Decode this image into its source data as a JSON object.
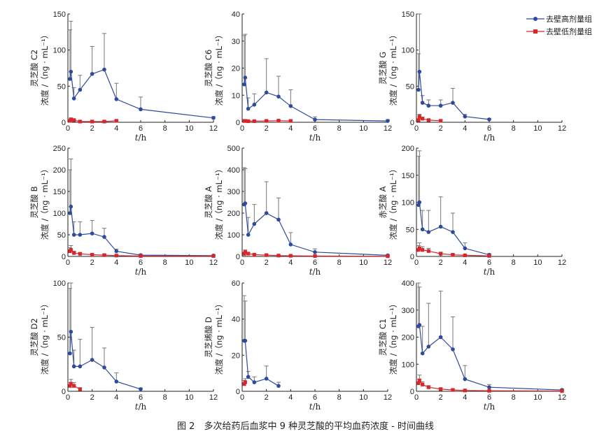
{
  "caption": "图 2　多次给药后血浆中 9 种灵芝酸的平均血药浓度 - 时间曲线",
  "colors": {
    "high": "#2e4a9e",
    "low": "#d9262b",
    "axis": "#222222",
    "error": "#777777"
  },
  "legend": [
    {
      "label": "去壁高剂量组",
      "color": "#2e4a9e",
      "marker": "circle"
    },
    {
      "label": "去壁低剂量组",
      "color": "#d9262b",
      "marker": "square"
    }
  ],
  "chart_data": [
    {
      "type": "line",
      "compound": "灵芝酸 C2",
      "ylabel_line1": "灵芝酸 C2",
      "ylabel_line2": "浓度 /（ng · mL⁻¹）",
      "xlabel": "t/h",
      "xlim": [
        0,
        12
      ],
      "xticks": [
        0,
        2,
        4,
        6,
        8,
        10,
        12
      ],
      "ylim": [
        0,
        150
      ],
      "yticks": [
        0,
        50,
        100,
        150
      ],
      "series": [
        {
          "name": "去壁高剂量组",
          "x": [
            0.17,
            0.25,
            0.5,
            1,
            2,
            3,
            4,
            6,
            12
          ],
          "y": [
            60,
            70,
            33,
            45,
            67,
            73,
            32,
            18,
            6
          ],
          "err": [
            68,
            70,
            15,
            20,
            38,
            50,
            22,
            17,
            2
          ]
        },
        {
          "name": "去壁低剂量组",
          "x": [
            0.17,
            0.25,
            0.5,
            1,
            2,
            3,
            4
          ],
          "y": [
            2,
            4,
            3,
            1,
            1,
            1,
            2
          ],
          "err": [
            1,
            2,
            1,
            1,
            1,
            1,
            1
          ]
        }
      ]
    },
    {
      "type": "line",
      "compound": "灵芝酸 C6",
      "ylabel_line1": "灵芝酸 C6",
      "ylabel_line2": "浓度 /（ng · mL⁻¹）",
      "xlabel": "t/h",
      "xlim": [
        0,
        12
      ],
      "xticks": [
        0,
        2,
        4,
        6,
        8,
        10,
        12
      ],
      "ylim": [
        0,
        40
      ],
      "yticks": [
        0,
        10,
        20,
        30,
        40
      ],
      "series": [
        {
          "name": "去壁高剂量组",
          "x": [
            0.17,
            0.25,
            0.5,
            1,
            2,
            3,
            4,
            6,
            12
          ],
          "y": [
            14,
            16.5,
            5,
            6.5,
            11,
            9.5,
            6,
            1,
            0.5
          ],
          "err": [
            18,
            16,
            4,
            4,
            12.5,
            7.5,
            6,
            1,
            0.5
          ]
        },
        {
          "name": "去壁低剂量组",
          "x": [
            0.17,
            0.25,
            0.5,
            1,
            2,
            3,
            4
          ],
          "y": [
            0.5,
            0.5,
            0.4,
            0.4,
            0.5,
            0.6,
            0.5
          ],
          "err": [
            0.3,
            0.3,
            0.2,
            0.2,
            0.2,
            0.2,
            0.2
          ]
        }
      ]
    },
    {
      "type": "line",
      "compound": "灵芝酸 G",
      "ylabel_line1": "灵芝酸 G",
      "ylabel_line2": "浓度 /（ng · mL⁻¹）",
      "xlabel": "t/h",
      "xlim": [
        0,
        12
      ],
      "xticks": [
        0,
        2,
        4,
        6,
        8,
        10,
        12
      ],
      "ylim": [
        0,
        150
      ],
      "yticks": [
        0,
        50,
        100,
        150
      ],
      "series": [
        {
          "name": "去壁高剂量组",
          "x": [
            0.17,
            0.25,
            0.5,
            1,
            2,
            3,
            4,
            6
          ],
          "y": [
            45,
            70,
            27,
            23,
            23,
            27,
            8,
            4
          ],
          "err": [
            50,
            80,
            10,
            8,
            8,
            20,
            3,
            1
          ]
        },
        {
          "name": "去壁低剂量组",
          "x": [
            0.17,
            0.25,
            0.5,
            1,
            2
          ],
          "y": [
            3,
            8,
            5,
            3,
            2
          ],
          "err": [
            2,
            3,
            2,
            1,
            1
          ]
        }
      ]
    },
    {
      "type": "line",
      "compound": "灵芝酸 B",
      "ylabel_line1": "灵芝酸 B",
      "ylabel_line2": "浓度 /（ng · mL⁻¹）",
      "xlabel": "t/h",
      "xlim": [
        0,
        12
      ],
      "xticks": [
        0,
        2,
        4,
        6,
        8,
        10,
        12
      ],
      "ylim": [
        0,
        250
      ],
      "yticks": [
        0,
        50,
        100,
        150,
        200,
        250
      ],
      "series": [
        {
          "name": "去壁高剂量组",
          "x": [
            0.17,
            0.25,
            0.5,
            1,
            2,
            3,
            4,
            6,
            12
          ],
          "y": [
            100,
            115,
            50,
            50,
            53,
            45,
            12,
            3,
            2
          ],
          "err": [
            100,
            110,
            30,
            30,
            30,
            20,
            5,
            2,
            1
          ]
        },
        {
          "name": "去壁低剂量组",
          "x": [
            0.17,
            0.25,
            0.5,
            1,
            2,
            3,
            4,
            6,
            12
          ],
          "y": [
            12,
            15,
            8,
            6,
            4,
            3,
            2,
            1,
            1
          ],
          "err": [
            8,
            10,
            4,
            3,
            2,
            2,
            1,
            1,
            0.5
          ]
        }
      ]
    },
    {
      "type": "line",
      "compound": "灵芝酸 A",
      "ylabel_line1": "灵芝酸 A",
      "ylabel_line2": "浓度 /（ng · mL⁻¹）",
      "xlabel": "t/h",
      "xlim": [
        0,
        12
      ],
      "xticks": [
        0,
        2,
        4,
        6,
        8,
        10,
        12
      ],
      "ylim": [
        0,
        500
      ],
      "yticks": [
        0,
        100,
        200,
        300,
        400,
        500
      ],
      "series": [
        {
          "name": "去壁高剂量组",
          "x": [
            0.17,
            0.25,
            0.5,
            1,
            2,
            3,
            4,
            6,
            12
          ],
          "y": [
            240,
            245,
            100,
            150,
            200,
            170,
            55,
            20,
            5
          ],
          "err": [
            170,
            160,
            80,
            90,
            145,
            100,
            55,
            15,
            3
          ]
        },
        {
          "name": "去壁低剂量组",
          "x": [
            0.17,
            0.25,
            0.5,
            1,
            2,
            3,
            4,
            6,
            12
          ],
          "y": [
            12,
            20,
            13,
            8,
            6,
            4,
            3,
            2,
            1
          ],
          "err": [
            8,
            10,
            6,
            4,
            3,
            2,
            2,
            1,
            0.5
          ]
        }
      ]
    },
    {
      "type": "line",
      "compound": "赤芝酸 A",
      "ylabel_line1": "赤芝酸 A",
      "ylabel_line2": "浓度 /（ng · mL⁻¹）",
      "xlabel": "t/h",
      "xlim": [
        0,
        12
      ],
      "xticks": [
        0,
        2,
        4,
        6,
        8,
        10,
        12
      ],
      "ylim": [
        0,
        200
      ],
      "yticks": [
        0,
        50,
        100,
        150,
        200
      ],
      "series": [
        {
          "name": "去壁高剂量组",
          "x": [
            0.17,
            0.25,
            0.5,
            1,
            2,
            3,
            4,
            6
          ],
          "y": [
            95,
            100,
            50,
            45,
            55,
            45,
            15,
            3
          ],
          "err": [
            90,
            95,
            35,
            40,
            55,
            35,
            10,
            2
          ]
        },
        {
          "name": "去壁低剂量组",
          "x": [
            0.17,
            0.25,
            0.5,
            1,
            2,
            3,
            4,
            6
          ],
          "y": [
            12,
            15,
            12,
            10,
            5,
            3,
            2,
            1
          ],
          "err": [
            8,
            10,
            6,
            5,
            3,
            2,
            1,
            1
          ]
        }
      ]
    },
    {
      "type": "line",
      "compound": "灵芝酸 D2",
      "ylabel_line1": "灵芝酸 D2",
      "ylabel_line2": "浓度 /（ng · mL⁻¹）",
      "xlabel": "t/h",
      "xlim": [
        0,
        12
      ],
      "xticks": [
        0,
        2,
        4,
        6,
        8,
        10,
        12
      ],
      "ylim": [
        0,
        100
      ],
      "yticks": [
        0,
        50,
        100
      ],
      "series": [
        {
          "name": "去壁高剂量组",
          "x": [
            0.17,
            0.25,
            0.5,
            1,
            2,
            3,
            4,
            6
          ],
          "y": [
            35,
            55,
            23,
            23,
            29,
            22,
            9,
            2
          ],
          "err": [
            60,
            45,
            15,
            25,
            30,
            18,
            8,
            1
          ]
        },
        {
          "name": "去壁低剂量组",
          "x": [
            0.17,
            0.25,
            0.5,
            1
          ],
          "y": [
            5,
            7,
            5,
            2
          ],
          "err": [
            3,
            4,
            3,
            1
          ]
        }
      ]
    },
    {
      "type": "line",
      "compound": "灵芝烯酸 D",
      "ylabel_line1": "灵芝烯酸 D",
      "ylabel_line2": "浓度 /（ng · mL⁻¹）",
      "xlabel": "t/h",
      "xlim": [
        0,
        12
      ],
      "xticks": [
        0,
        2,
        4,
        6,
        8,
        10,
        12
      ],
      "ylim": [
        0,
        60
      ],
      "yticks": [
        0,
        20,
        40,
        60
      ],
      "series": [
        {
          "name": "去壁高剂量组",
          "x": [
            0.17,
            0.25,
            0.5,
            1,
            2,
            3
          ],
          "y": [
            28,
            28,
            8,
            5,
            7,
            3
          ],
          "err": [
            25,
            22,
            3,
            3,
            7,
            2
          ]
        },
        {
          "name": "去壁低剂量组",
          "x": [
            0.17,
            0.25
          ],
          "y": [
            4,
            5
          ],
          "err": [
            2,
            2
          ]
        }
      ]
    },
    {
      "type": "line",
      "compound": "灵芝酸 C1",
      "ylabel_line1": "灵芝酸 C1",
      "ylabel_line2": "浓度 /（ng · mL⁻¹）",
      "xlabel": "t/h",
      "xlim": [
        0,
        12
      ],
      "xticks": [
        0,
        2,
        4,
        6,
        8,
        10,
        12
      ],
      "ylim": [
        0,
        400
      ],
      "yticks": [
        0,
        100,
        200,
        300,
        400
      ],
      "series": [
        {
          "name": "去壁高剂量组",
          "x": [
            0.17,
            0.25,
            0.5,
            1,
            2,
            3,
            4,
            6,
            12
          ],
          "y": [
            240,
            245,
            140,
            165,
            200,
            155,
            45,
            15,
            5
          ],
          "err": [
            160,
            140,
            100,
            160,
            170,
            120,
            50,
            10,
            3
          ]
        },
        {
          "name": "去壁低剂量组",
          "x": [
            0.17,
            0.25,
            0.5,
            1,
            2,
            3,
            4,
            6,
            12
          ],
          "y": [
            30,
            40,
            25,
            15,
            8,
            5,
            3,
            2,
            1
          ],
          "err": [
            15,
            20,
            10,
            6,
            4,
            3,
            2,
            1,
            0.5
          ]
        }
      ]
    }
  ]
}
